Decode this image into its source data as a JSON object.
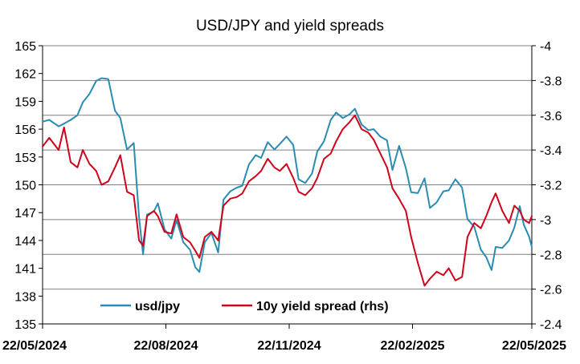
{
  "chart_data": {
    "type": "line",
    "title": "USD/JPY and yield spreads",
    "xlabel": "",
    "ylabel": "",
    "y2label": "",
    "grid": true,
    "legend_position": "bottom-inside",
    "x_range": [
      "2024-05-22",
      "2025-05-22"
    ],
    "x_ticks": [
      "22/05/2024",
      "22/08/2024",
      "22/11/2024",
      "22/02/2025",
      "22/05/2025"
    ],
    "y_left": {
      "min": 135,
      "max": 165,
      "ticks": [
        "135",
        "138",
        "141",
        "144",
        "147",
        "150",
        "153",
        "156",
        "159",
        "162",
        "165"
      ]
    },
    "y_right": {
      "min": -4,
      "max": -2.4,
      "ticks": [
        "-2.4",
        "-2.6",
        "-2.8",
        "-3",
        "-3.2",
        "-3.4",
        "-3.6",
        "-3.8",
        "-4"
      ],
      "inverted": true
    },
    "series": [
      {
        "name": "usd/jpy",
        "axis": "left",
        "color": "#2b8cb3",
        "points": [
          [
            "2024-05-22",
            156.8
          ],
          [
            "2024-05-27",
            157.0
          ],
          [
            "2024-06-03",
            156.3
          ],
          [
            "2024-06-07",
            156.6
          ],
          [
            "2024-06-12",
            157.0
          ],
          [
            "2024-06-17",
            157.5
          ],
          [
            "2024-06-21",
            158.9
          ],
          [
            "2024-06-26",
            159.8
          ],
          [
            "2024-07-01",
            161.2
          ],
          [
            "2024-07-05",
            161.5
          ],
          [
            "2024-07-10",
            161.4
          ],
          [
            "2024-07-15",
            158.0
          ],
          [
            "2024-07-19",
            157.2
          ],
          [
            "2024-07-24",
            153.8
          ],
          [
            "2024-07-29",
            154.5
          ],
          [
            "2024-08-02",
            146.5
          ],
          [
            "2024-08-05",
            142.5
          ],
          [
            "2024-08-08",
            146.8
          ],
          [
            "2024-08-13",
            147.1
          ],
          [
            "2024-08-16",
            148.0
          ],
          [
            "2024-08-21",
            145.2
          ],
          [
            "2024-08-26",
            144.2
          ],
          [
            "2024-08-30",
            146.2
          ],
          [
            "2024-09-04",
            143.8
          ],
          [
            "2024-09-09",
            143.0
          ],
          [
            "2024-09-13",
            141.1
          ],
          [
            "2024-09-16",
            140.6
          ],
          [
            "2024-09-20",
            143.8
          ],
          [
            "2024-09-25",
            144.8
          ],
          [
            "2024-09-30",
            142.7
          ],
          [
            "2024-10-04",
            148.4
          ],
          [
            "2024-10-09",
            149.3
          ],
          [
            "2024-10-14",
            149.7
          ],
          [
            "2024-10-18",
            149.9
          ],
          [
            "2024-10-23",
            152.2
          ],
          [
            "2024-10-28",
            153.2
          ],
          [
            "2024-11-01",
            152.9
          ],
          [
            "2024-11-06",
            154.6
          ],
          [
            "2024-11-11",
            153.8
          ],
          [
            "2024-11-15",
            154.4
          ],
          [
            "2024-11-20",
            155.2
          ],
          [
            "2024-11-25",
            154.3
          ],
          [
            "2024-11-29",
            150.6
          ],
          [
            "2024-12-04",
            150.2
          ],
          [
            "2024-12-09",
            151.2
          ],
          [
            "2024-12-13",
            153.6
          ],
          [
            "2024-12-18",
            154.7
          ],
          [
            "2024-12-23",
            157.0
          ],
          [
            "2024-12-27",
            157.8
          ],
          [
            "2025-01-01",
            157.2
          ],
          [
            "2025-01-06",
            157.6
          ],
          [
            "2025-01-10",
            158.2
          ],
          [
            "2025-01-15",
            156.5
          ],
          [
            "2025-01-20",
            155.9
          ],
          [
            "2025-01-24",
            156.0
          ],
          [
            "2025-01-29",
            155.2
          ],
          [
            "2025-02-03",
            154.8
          ],
          [
            "2025-02-07",
            151.6
          ],
          [
            "2025-02-12",
            154.2
          ],
          [
            "2025-02-17",
            151.8
          ],
          [
            "2025-02-21",
            149.2
          ],
          [
            "2025-02-26",
            149.1
          ],
          [
            "2025-03-03",
            150.7
          ],
          [
            "2025-03-07",
            147.5
          ],
          [
            "2025-03-12",
            148.1
          ],
          [
            "2025-03-17",
            149.3
          ],
          [
            "2025-03-21",
            149.4
          ],
          [
            "2025-03-26",
            150.6
          ],
          [
            "2025-03-31",
            149.7
          ],
          [
            "2025-04-04",
            146.3
          ],
          [
            "2025-04-09",
            145.5
          ],
          [
            "2025-04-14",
            143.0
          ],
          [
            "2025-04-18",
            142.2
          ],
          [
            "2025-04-22",
            140.8
          ],
          [
            "2025-04-25",
            143.3
          ],
          [
            "2025-04-30",
            143.2
          ],
          [
            "2025-05-05",
            144.0
          ],
          [
            "2025-05-09",
            145.4
          ],
          [
            "2025-05-13",
            147.7
          ],
          [
            "2025-05-16",
            145.7
          ],
          [
            "2025-05-20",
            144.4
          ],
          [
            "2025-05-22",
            143.3
          ]
        ]
      },
      {
        "name": "10y yield spread (rhs)",
        "axis": "right",
        "color": "#d0021b",
        "points": [
          [
            "2024-05-22",
            -3.42
          ],
          [
            "2024-05-27",
            -3.47
          ],
          [
            "2024-06-03",
            -3.4
          ],
          [
            "2024-06-07",
            -3.53
          ],
          [
            "2024-06-12",
            -3.33
          ],
          [
            "2024-06-17",
            -3.3
          ],
          [
            "2024-06-21",
            -3.4
          ],
          [
            "2024-06-26",
            -3.32
          ],
          [
            "2024-07-01",
            -3.28
          ],
          [
            "2024-07-05",
            -3.2
          ],
          [
            "2024-07-10",
            -3.22
          ],
          [
            "2024-07-15",
            -3.3
          ],
          [
            "2024-07-19",
            -3.37
          ],
          [
            "2024-07-24",
            -3.16
          ],
          [
            "2024-07-29",
            -3.14
          ],
          [
            "2024-08-02",
            -2.88
          ],
          [
            "2024-08-05",
            -2.85
          ],
          [
            "2024-08-08",
            -3.02
          ],
          [
            "2024-08-13",
            -3.05
          ],
          [
            "2024-08-16",
            -3.02
          ],
          [
            "2024-08-21",
            -2.93
          ],
          [
            "2024-08-26",
            -2.92
          ],
          [
            "2024-08-30",
            -3.03
          ],
          [
            "2024-09-04",
            -2.9
          ],
          [
            "2024-09-09",
            -2.87
          ],
          [
            "2024-09-13",
            -2.82
          ],
          [
            "2024-09-16",
            -2.78
          ],
          [
            "2024-09-20",
            -2.9
          ],
          [
            "2024-09-25",
            -2.93
          ],
          [
            "2024-09-30",
            -2.88
          ],
          [
            "2024-10-04",
            -3.08
          ],
          [
            "2024-10-09",
            -3.12
          ],
          [
            "2024-10-14",
            -3.13
          ],
          [
            "2024-10-18",
            -3.15
          ],
          [
            "2024-10-23",
            -3.22
          ],
          [
            "2024-10-28",
            -3.25
          ],
          [
            "2024-11-01",
            -3.28
          ],
          [
            "2024-11-06",
            -3.35
          ],
          [
            "2024-11-11",
            -3.3
          ],
          [
            "2024-11-15",
            -3.28
          ],
          [
            "2024-11-20",
            -3.32
          ],
          [
            "2024-11-25",
            -3.24
          ],
          [
            "2024-11-29",
            -3.16
          ],
          [
            "2024-12-04",
            -3.14
          ],
          [
            "2024-12-09",
            -3.18
          ],
          [
            "2024-12-13",
            -3.24
          ],
          [
            "2024-12-18",
            -3.35
          ],
          [
            "2024-12-23",
            -3.38
          ],
          [
            "2024-12-27",
            -3.45
          ],
          [
            "2025-01-01",
            -3.52
          ],
          [
            "2025-01-06",
            -3.56
          ],
          [
            "2025-01-10",
            -3.6
          ],
          [
            "2025-01-15",
            -3.52
          ],
          [
            "2025-01-20",
            -3.5
          ],
          [
            "2025-01-24",
            -3.46
          ],
          [
            "2025-01-29",
            -3.38
          ],
          [
            "2025-02-03",
            -3.3
          ],
          [
            "2025-02-07",
            -3.18
          ],
          [
            "2025-02-12",
            -3.12
          ],
          [
            "2025-02-17",
            -3.05
          ],
          [
            "2025-02-21",
            -2.9
          ],
          [
            "2025-02-26",
            -2.75
          ],
          [
            "2025-03-03",
            -2.62
          ],
          [
            "2025-03-07",
            -2.66
          ],
          [
            "2025-03-12",
            -2.7
          ],
          [
            "2025-03-17",
            -2.68
          ],
          [
            "2025-03-21",
            -2.72
          ],
          [
            "2025-03-26",
            -2.65
          ],
          [
            "2025-03-31",
            -2.67
          ],
          [
            "2025-04-04",
            -2.9
          ],
          [
            "2025-04-09",
            -2.98
          ],
          [
            "2025-04-14",
            -2.95
          ],
          [
            "2025-04-18",
            -3.02
          ],
          [
            "2025-04-22",
            -3.1
          ],
          [
            "2025-04-25",
            -3.15
          ],
          [
            "2025-04-30",
            -3.05
          ],
          [
            "2025-05-05",
            -2.98
          ],
          [
            "2025-05-09",
            -3.08
          ],
          [
            "2025-05-13",
            -3.05
          ],
          [
            "2025-05-16",
            -3.0
          ],
          [
            "2025-05-20",
            -2.98
          ],
          [
            "2025-05-22",
            -3.02
          ]
        ]
      }
    ]
  }
}
